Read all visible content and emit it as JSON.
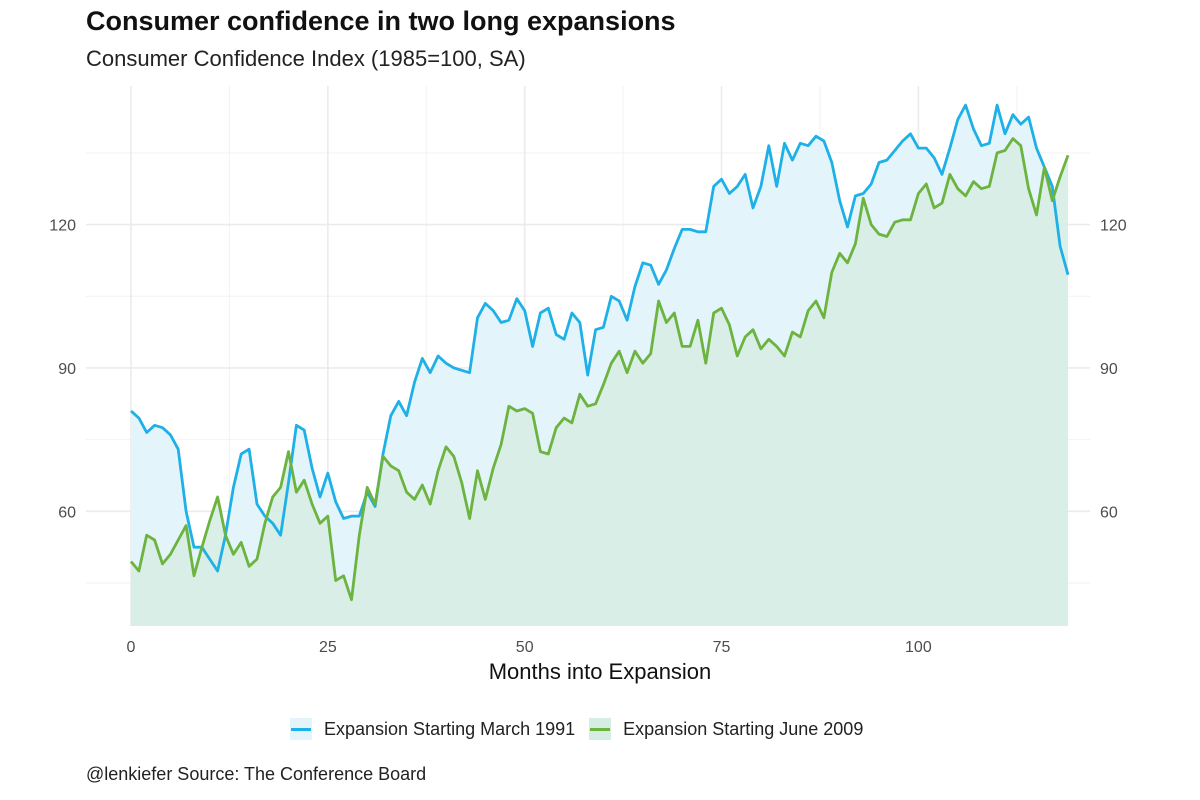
{
  "chart_data": {
    "type": "area",
    "title": "Consumer confidence in two long expansions",
    "subtitle": "Consumer Confidence Index (1985=100, SA)",
    "caption": "@lenkiefer Source: The Conference Board",
    "xlabel": "Months into Expansion",
    "ylabel": "",
    "xlim": [
      0,
      119
    ],
    "ylim": [
      36,
      149
    ],
    "x_ticks": [
      0,
      25,
      50,
      75,
      100
    ],
    "y_ticks": [
      60,
      90,
      120
    ],
    "y_axis_right": true,
    "grid": true,
    "legend_position": "bottom",
    "series": [
      {
        "name": "Expansion Starting March 1991",
        "color": "#1eb0e6",
        "fill": "#e3f5fb",
        "values": [
          81,
          79.5,
          76.5,
          78,
          77.5,
          76,
          73,
          60,
          52.5,
          52.5,
          50,
          47.5,
          55,
          65,
          72,
          73,
          61.5,
          59,
          57.5,
          55,
          66,
          78,
          77,
          69,
          63,
          68,
          62,
          58.5,
          59,
          59,
          64,
          61,
          72,
          80,
          83,
          80,
          87,
          92,
          89,
          92.5,
          91,
          90,
          89.5,
          89,
          100.5,
          103.5,
          102,
          99.5,
          100,
          104.5,
          102,
          94.5,
          101.5,
          102.5,
          97,
          96,
          101.5,
          99.5,
          88.5,
          98,
          98.5,
          105,
          104,
          100,
          107,
          112,
          111.5,
          107.5,
          110.5,
          115,
          119,
          119,
          118.5,
          118.5,
          128,
          129.5,
          126.5,
          128,
          130.5,
          123.5,
          128,
          136.5,
          128,
          137,
          133.5,
          137,
          136.5,
          138.5,
          137.5,
          133,
          125,
          119.5,
          126,
          126.5,
          128.5,
          133,
          133.5,
          135.5,
          137.5,
          139,
          136,
          136,
          134,
          130.5,
          136,
          142,
          145,
          140,
          136.5,
          137,
          145,
          139,
          143,
          141,
          142.5,
          136,
          132,
          128,
          115.5,
          109.5
        ]
      },
      {
        "name": "Expansion Starting June 2009",
        "color": "#6db33f",
        "fill": "#d6ede4",
        "values": [
          49.5,
          47.5,
          55,
          54,
          49,
          51,
          54,
          57,
          46.5,
          52.5,
          58,
          63,
          55,
          51,
          53.5,
          48.5,
          50,
          57.5,
          63,
          65,
          72.5,
          64,
          66.5,
          61.5,
          57.5,
          59,
          45.5,
          46.5,
          41.5,
          55,
          65,
          61.5,
          71.5,
          69.5,
          68.5,
          64,
          62.5,
          65.5,
          61.5,
          68.5,
          73.5,
          71.5,
          66,
          58.5,
          68.5,
          62.5,
          69,
          74,
          82,
          81,
          81.5,
          80.5,
          72.5,
          72,
          77.5,
          79.5,
          78.5,
          84.5,
          82,
          82.5,
          86.5,
          91,
          93.5,
          89,
          93.5,
          91,
          93,
          104,
          99.5,
          101.5,
          94.5,
          94.5,
          100,
          91,
          101.5,
          102.5,
          99,
          92.5,
          96.5,
          98,
          94,
          96,
          94.5,
          92.5,
          97.5,
          96.5,
          102,
          104,
          100.5,
          110,
          114,
          112,
          116,
          125.5,
          120,
          118,
          117.5,
          120.5,
          121,
          121,
          126.5,
          128.5,
          123.5,
          124.5,
          130.5,
          127.5,
          126,
          129,
          127.5,
          128,
          135,
          135.5,
          138,
          136.5,
          127.5,
          122,
          132,
          125,
          130,
          134.5
        ]
      }
    ]
  }
}
